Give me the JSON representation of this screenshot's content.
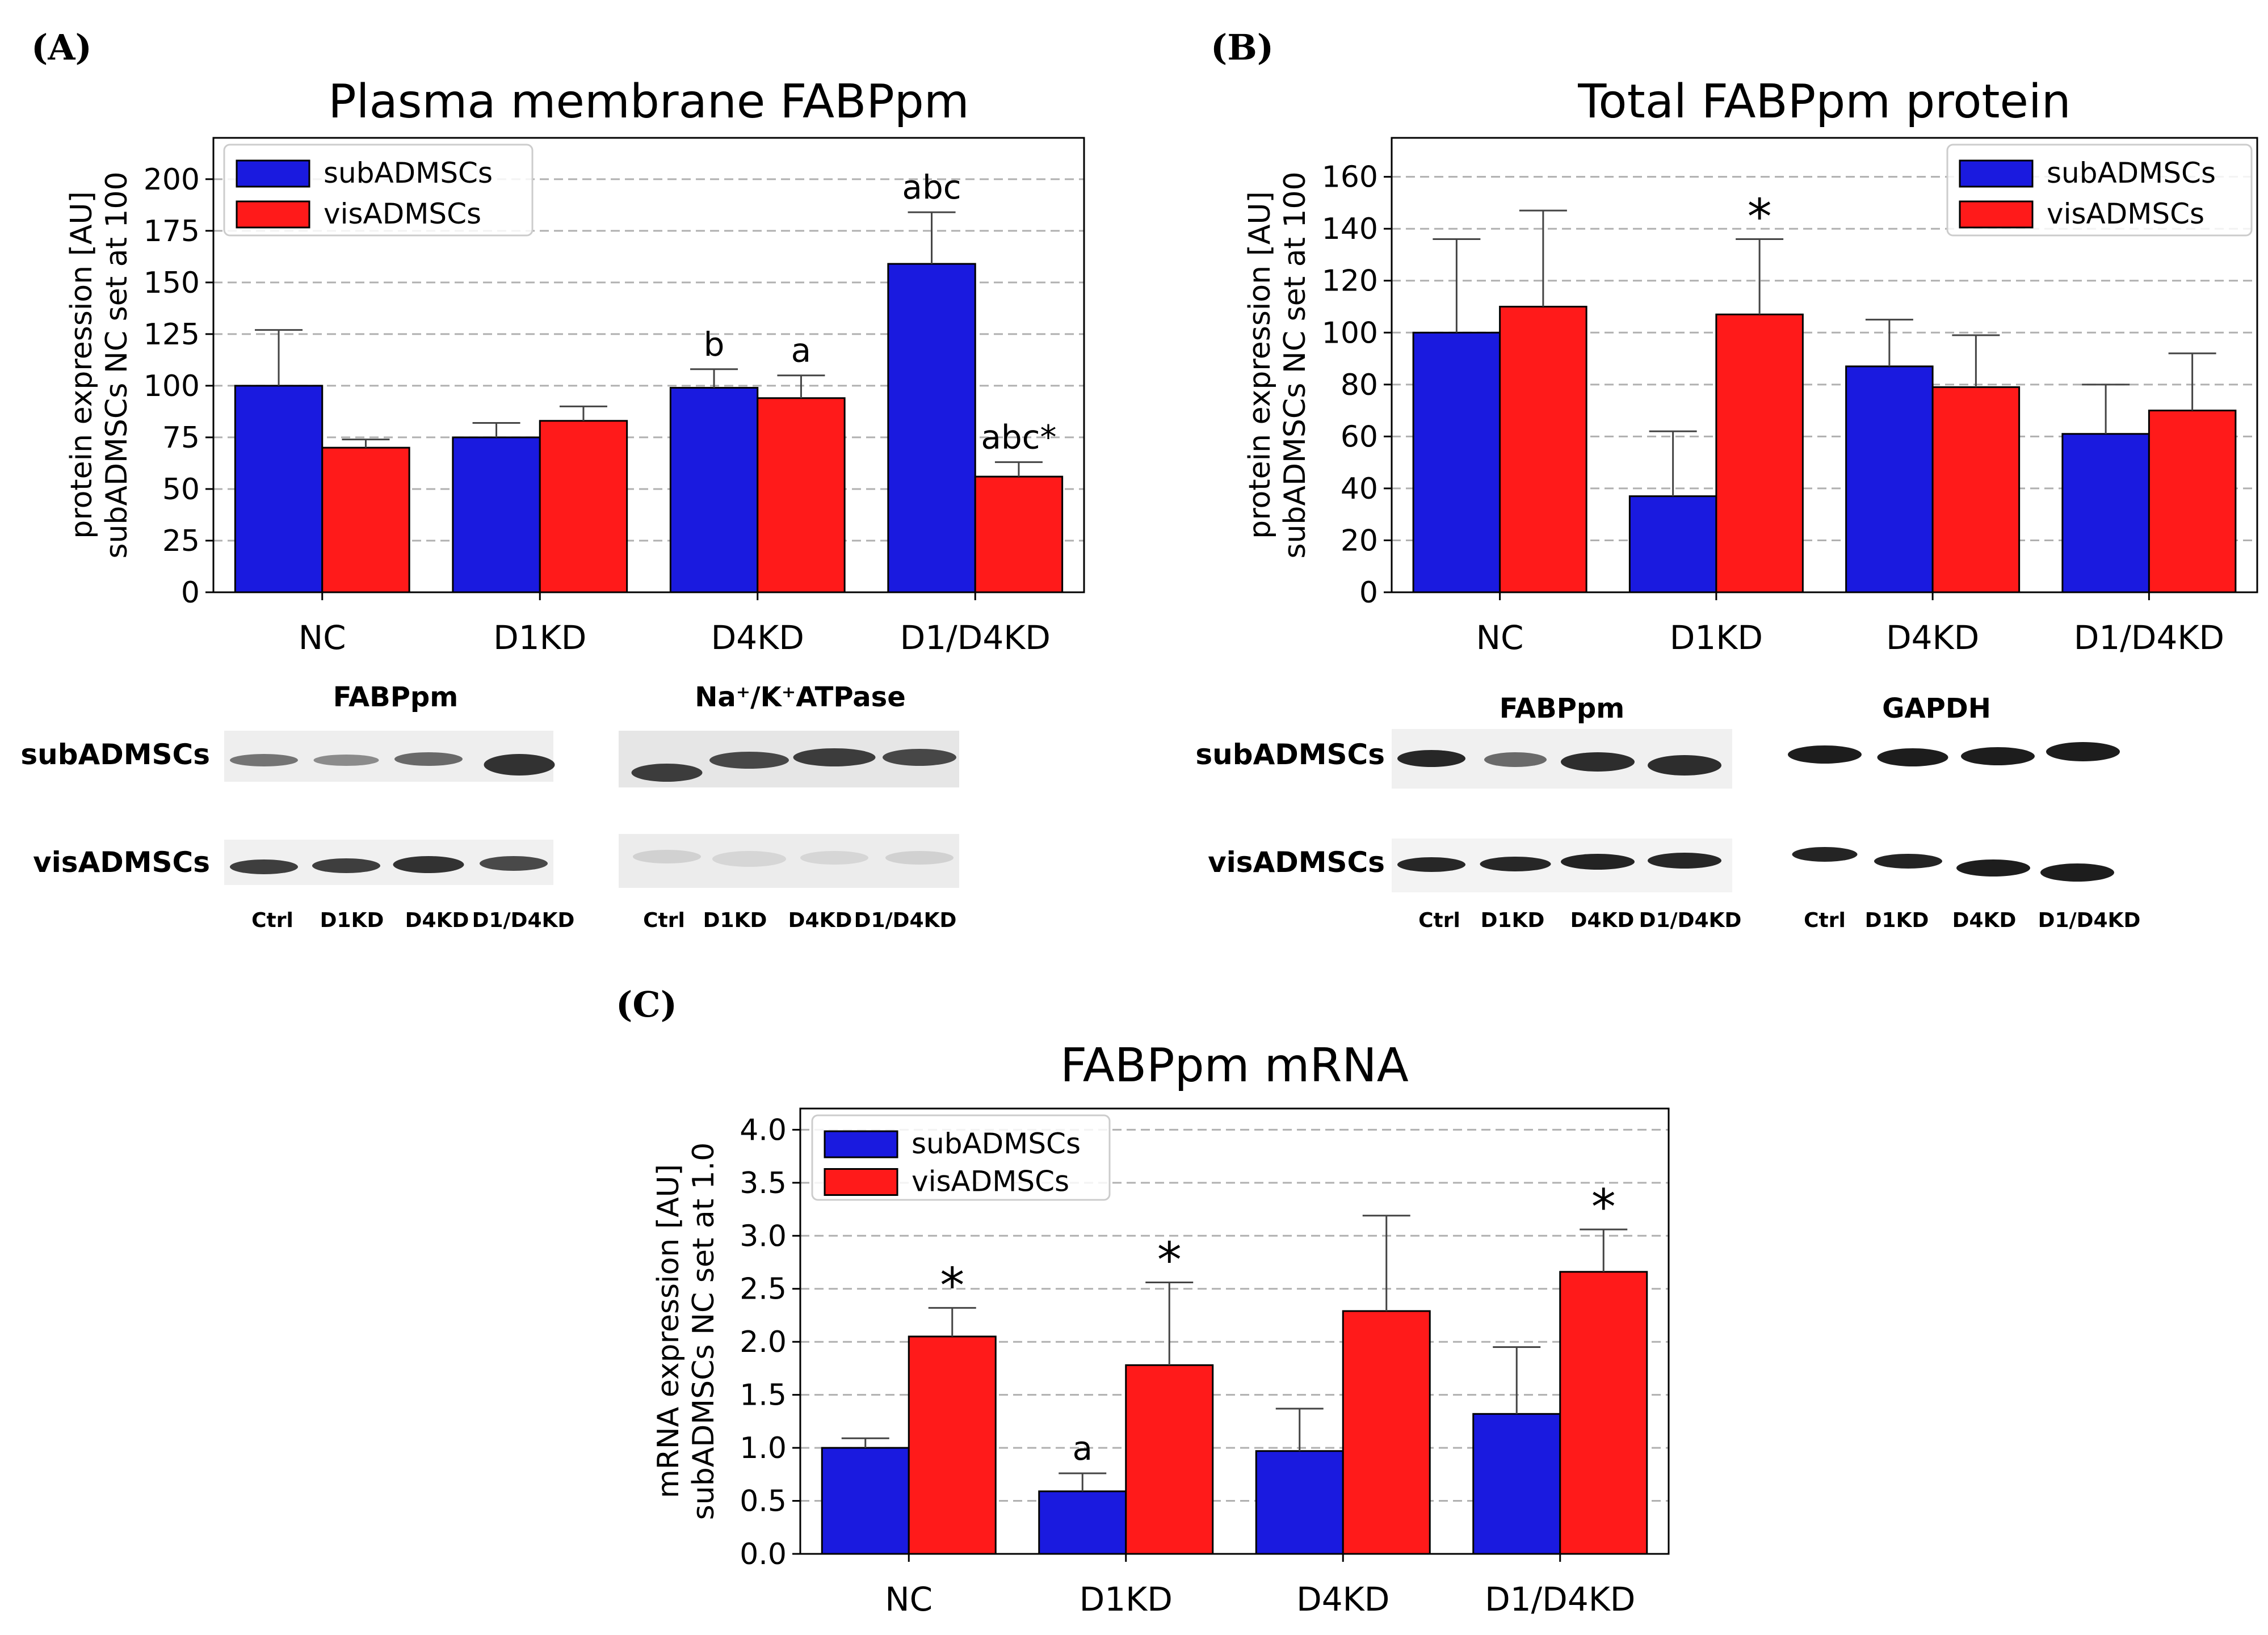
{
  "colors": {
    "sub": "#1a1adf",
    "vis": "#ff1a1a",
    "grid": "#b0b0b0"
  },
  "chart_data": [
    {
      "type": "bar",
      "panel_label": "(A)",
      "title": "Plasma membrane FABPpm",
      "ylabel_line1": "protein expression [AU]",
      "ylabel_line2": "subADMSCs NC set at 100",
      "categories": [
        "NC",
        "D1KD",
        "D4KD",
        "D1/D4KD"
      ],
      "ylim": [
        0,
        220
      ],
      "yticks": [
        0,
        25,
        50,
        75,
        100,
        125,
        150,
        175,
        200
      ],
      "legend_position": "top-left",
      "series": [
        {
          "name": "subADMSCs",
          "values": [
            100,
            75,
            99,
            159
          ],
          "errors": [
            27,
            7,
            9,
            25
          ],
          "annotations": [
            "",
            "",
            "b",
            "abc"
          ]
        },
        {
          "name": "visADMSCs",
          "values": [
            70,
            83,
            94,
            56
          ],
          "errors": [
            4,
            7,
            11,
            7
          ],
          "annotations": [
            "",
            "",
            "a",
            "abc*"
          ]
        }
      ]
    },
    {
      "type": "bar",
      "panel_label": "(B)",
      "title": "Total FABPpm protein",
      "ylabel_line1": "protein expression [AU]",
      "ylabel_line2": "subADMSCs NC set at 100",
      "categories": [
        "NC",
        "D1KD",
        "D4KD",
        "D1/D4KD"
      ],
      "ylim": [
        0,
        175
      ],
      "yticks": [
        0,
        20,
        40,
        60,
        80,
        100,
        120,
        140,
        160
      ],
      "legend_position": "top-right",
      "series": [
        {
          "name": "subADMSCs",
          "values": [
            100,
            37,
            87,
            61
          ],
          "errors": [
            36,
            25,
            18,
            19
          ],
          "annotations": [
            "",
            "",
            "",
            ""
          ]
        },
        {
          "name": "visADMSCs",
          "values": [
            110,
            107,
            79,
            70
          ],
          "errors": [
            37,
            29,
            20,
            22
          ],
          "annotations": [
            "",
            "*",
            "",
            ""
          ]
        }
      ]
    },
    {
      "type": "bar",
      "panel_label": "(C)",
      "title": "FABPpm mRNA",
      "ylabel_line1": "mRNA expression [AU]",
      "ylabel_line2": "subADMSCs NC set at 1.0",
      "categories": [
        "NC",
        "D1KD",
        "D4KD",
        "D1/D4KD"
      ],
      "ylim": [
        0,
        4.2
      ],
      "yticks": [
        "0.0",
        "0.5",
        "1.0",
        "1.5",
        "2.0",
        "2.5",
        "3.0",
        "3.5",
        "4.0"
      ],
      "legend_position": "top-left",
      "series": [
        {
          "name": "subADMSCs",
          "values": [
            1.0,
            0.59,
            0.97,
            1.32
          ],
          "errors": [
            0.09,
            0.17,
            0.4,
            0.63
          ],
          "annotations": [
            "",
            "a",
            "",
            ""
          ]
        },
        {
          "name": "visADMSCs",
          "values": [
            2.05,
            1.78,
            2.29,
            2.66
          ],
          "errors": [
            0.27,
            0.78,
            0.9,
            0.4
          ],
          "annotations": [
            "*",
            "*",
            "",
            "*"
          ]
        }
      ]
    }
  ],
  "blots": {
    "A": {
      "left_header": "FABPpm",
      "right_header": "Na⁺/K⁺ATPase",
      "row_labels": [
        "subADMSCs",
        "visADMSCs"
      ],
      "lanes_left": [
        "Ctrl",
        "D1KD",
        "D4KD",
        "D1/D4KD"
      ],
      "lanes_right": [
        "Ctrl",
        "D1KD",
        "D4KD",
        "D1/D4KD"
      ]
    },
    "B": {
      "left_header": "FABPpm",
      "right_header": "GAPDH",
      "row_labels": [
        "subADMSCs",
        "visADMSCs"
      ],
      "lanes_left": [
        "Ctrl",
        "D1KD",
        "D4KD",
        "D1/D4KD"
      ],
      "lanes_right": [
        "Ctrl",
        "D1KD",
        "D4KD",
        "D1/D4KD"
      ]
    }
  }
}
